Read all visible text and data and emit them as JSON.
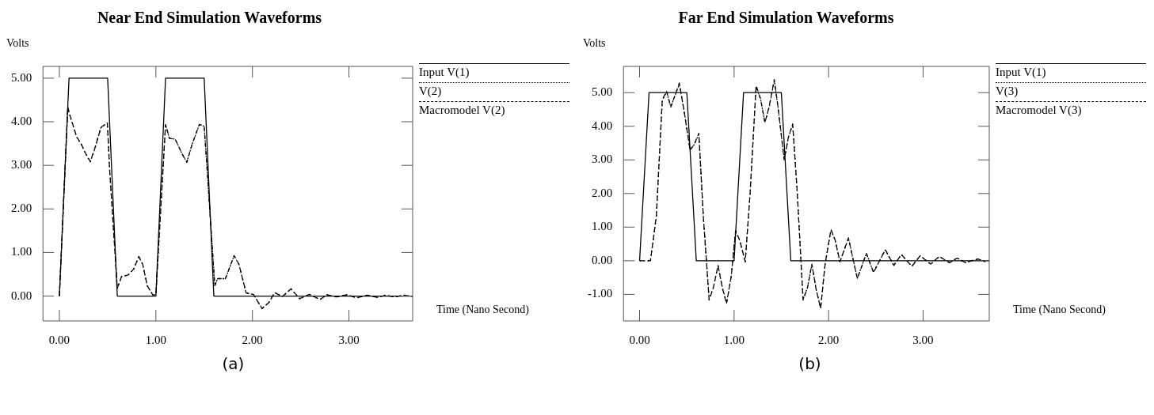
{
  "chart_data": [
    {
      "type": "line",
      "title": "Near End Simulation Waveforms",
      "ylabel": "Volts",
      "xlabel": "Time (Nano Second)",
      "annotations": [
        "(a)"
      ],
      "legend": "top right",
      "grid": false,
      "marker": "none",
      "xlim": [
        -0.17,
        3.66
      ],
      "xticks": [
        {
          "value": 0,
          "label": "0.00"
        },
        {
          "value": 1,
          "label": "1.00"
        },
        {
          "value": 2,
          "label": "2.00"
        },
        {
          "value": 3,
          "label": "3.00"
        }
      ],
      "ylim": [
        -0.57,
        5.27
      ],
      "yticks": [
        {
          "value": 0,
          "label": "0.00"
        },
        {
          "value": 1,
          "label": "1.00"
        },
        {
          "value": 2,
          "label": "2.00"
        },
        {
          "value": 3,
          "label": "3.00"
        },
        {
          "value": 4,
          "label": "4.00"
        },
        {
          "value": 5,
          "label": "5.00"
        }
      ],
      "series": [
        {
          "name": "Input V(1)",
          "color": "#000000",
          "line_style": "solid",
          "x": [
            0,
            0.1,
            0.5,
            0.6,
            1.0,
            1.1,
            1.5,
            1.6,
            3.66
          ],
          "values": [
            0,
            5,
            5,
            0,
            0,
            5,
            5,
            0,
            0
          ]
        },
        {
          "name": "V(2)",
          "color": "#000000",
          "line_style": "dotted",
          "x": [
            0,
            0.087,
            0.118,
            0.18,
            0.227,
            0.273,
            0.32,
            0.366,
            0.43,
            0.497,
            0.52,
            0.6,
            0.646,
            0.708,
            0.77,
            0.823,
            0.863,
            0.91,
            0.97,
            1.0,
            1.1,
            1.14,
            1.2,
            1.27,
            1.32,
            1.376,
            1.45,
            1.5,
            1.53,
            1.61,
            1.64,
            1.72,
            1.81,
            1.86,
            1.935,
            2.01,
            2.1,
            2.17,
            2.23,
            2.31,
            2.4,
            2.49,
            2.59,
            2.7,
            2.77,
            2.87,
            2.98,
            3.08,
            3.19,
            3.29,
            3.38,
            3.47,
            3.57,
            3.66
          ],
          "values": [
            0,
            4.3,
            4.07,
            3.64,
            3.48,
            3.26,
            3.08,
            3.37,
            3.86,
            3.97,
            2.93,
            0.18,
            0.45,
            0.47,
            0.62,
            0.9,
            0.73,
            0.24,
            0.02,
            0.04,
            3.93,
            3.62,
            3.6,
            3.27,
            3.07,
            3.49,
            3.93,
            3.9,
            2.93,
            0.24,
            0.4,
            0.4,
            0.92,
            0.73,
            0.07,
            0.04,
            -0.28,
            -0.15,
            0.08,
            -0.01,
            0.16,
            -0.06,
            0.04,
            -0.08,
            0.03,
            -0.02,
            0.03,
            -0.04,
            0.02,
            -0.03,
            0.02,
            -0.02,
            0.02,
            -0.01
          ]
        },
        {
          "name": "Macromodel V(2)",
          "color": "#000000",
          "line_style": "dashed",
          "x": [
            0,
            0.087,
            0.118,
            0.18,
            0.227,
            0.273,
            0.32,
            0.366,
            0.43,
            0.497,
            0.52,
            0.6,
            0.646,
            0.708,
            0.77,
            0.823,
            0.863,
            0.91,
            0.97,
            1.0,
            1.1,
            1.14,
            1.2,
            1.27,
            1.32,
            1.376,
            1.45,
            1.5,
            1.53,
            1.61,
            1.64,
            1.72,
            1.81,
            1.86,
            1.935,
            2.01,
            2.1,
            2.17,
            2.23,
            2.31,
            2.4,
            2.49,
            2.59,
            2.7,
            2.77,
            2.87,
            2.98,
            3.08,
            3.19,
            3.29,
            3.38,
            3.47,
            3.57,
            3.66
          ],
          "values": [
            0,
            4.34,
            4.09,
            3.65,
            3.49,
            3.27,
            3.09,
            3.38,
            3.87,
            3.98,
            2.93,
            0.18,
            0.46,
            0.48,
            0.62,
            0.91,
            0.73,
            0.24,
            0.02,
            0.04,
            3.94,
            3.62,
            3.6,
            3.27,
            3.07,
            3.49,
            3.94,
            3.9,
            2.93,
            0.24,
            0.4,
            0.4,
            0.93,
            0.73,
            0.07,
            0.04,
            -0.29,
            -0.15,
            0.08,
            -0.01,
            0.17,
            -0.06,
            0.04,
            -0.08,
            0.03,
            -0.02,
            0.03,
            -0.04,
            0.02,
            -0.03,
            0.02,
            -0.02,
            0.02,
            -0.01
          ]
        }
      ]
    },
    {
      "type": "line",
      "title": "Far End Simulation Waveforms",
      "ylabel": "Volts",
      "xlabel": "Time (Nano Second)",
      "annotations": [
        "(b)"
      ],
      "legend": "top right",
      "grid": false,
      "marker": "none",
      "xlim": [
        -0.17,
        3.7
      ],
      "xticks": [
        {
          "value": 0,
          "label": "0.00"
        },
        {
          "value": 1,
          "label": "1.00"
        },
        {
          "value": 2,
          "label": "2.00"
        },
        {
          "value": 3,
          "label": "3.00"
        }
      ],
      "ylim": [
        -1.79,
        5.78
      ],
      "yticks": [
        {
          "value": -1,
          "label": "-1.00"
        },
        {
          "value": 0,
          "label": "0.00"
        },
        {
          "value": 1,
          "label": "1.00"
        },
        {
          "value": 2,
          "label": "2.00"
        },
        {
          "value": 3,
          "label": "3.00"
        },
        {
          "value": 4,
          "label": "4.00"
        },
        {
          "value": 5,
          "label": "5.00"
        }
      ],
      "series": [
        {
          "name": "Input V(1)",
          "color": "#000000",
          "line_style": "solid",
          "x": [
            0,
            0.1,
            0.5,
            0.6,
            1.0,
            1.1,
            1.5,
            1.6,
            3.7
          ],
          "values": [
            0,
            5,
            5,
            0,
            0,
            5,
            5,
            0,
            0
          ]
        },
        {
          "name": "V(3)",
          "color": "#000000",
          "line_style": "dotted",
          "x": [
            0,
            0.115,
            0.177,
            0.24,
            0.286,
            0.33,
            0.38,
            0.42,
            0.47,
            0.534,
            0.58,
            0.627,
            0.674,
            0.736,
            0.78,
            0.83,
            0.876,
            0.92,
            0.97,
            1.016,
            1.06,
            1.118,
            1.17,
            1.233,
            1.28,
            1.326,
            1.37,
            1.425,
            1.466,
            1.53,
            1.575,
            1.62,
            1.668,
            1.73,
            1.776,
            1.823,
            1.87,
            1.916,
            1.963,
            2.025,
            2.07,
            2.12,
            2.21,
            2.304,
            2.4,
            2.475,
            2.6,
            2.69,
            2.77,
            2.88,
            2.97,
            3.08,
            3.17,
            3.28,
            3.36,
            3.45,
            3.5,
            3.58,
            3.66
          ],
          "values": [
            0,
            0,
            1.3,
            4.77,
            5.02,
            4.58,
            4.95,
            5.25,
            4.48,
            3.3,
            3.46,
            3.77,
            1.35,
            -1.15,
            -0.8,
            -0.15,
            -0.8,
            -1.25,
            -0.46,
            0.88,
            0.6,
            -0.03,
            2.04,
            5.18,
            4.8,
            4.12,
            4.55,
            5.35,
            4.55,
            3.02,
            3.67,
            4.05,
            2.04,
            -1.15,
            -0.8,
            -0.12,
            -0.87,
            -1.4,
            -0.1,
            0.92,
            0.6,
            -0.03,
            0.67,
            -0.52,
            0.22,
            -0.34,
            0.32,
            -0.14,
            0.18,
            -0.16,
            0.15,
            -0.1,
            0.12,
            -0.06,
            0.08,
            -0.06,
            -0.01,
            0.05,
            -0.03
          ]
        },
        {
          "name": "Macromodel V(3)",
          "color": "#000000",
          "line_style": "dashed",
          "x": [
            0,
            0.115,
            0.177,
            0.24,
            0.286,
            0.33,
            0.38,
            0.42,
            0.47,
            0.534,
            0.58,
            0.627,
            0.674,
            0.736,
            0.78,
            0.83,
            0.876,
            0.92,
            0.97,
            1.016,
            1.06,
            1.118,
            1.17,
            1.233,
            1.28,
            1.326,
            1.37,
            1.425,
            1.466,
            1.53,
            1.575,
            1.62,
            1.668,
            1.73,
            1.776,
            1.823,
            1.87,
            1.916,
            1.963,
            2.025,
            2.07,
            2.12,
            2.21,
            2.304,
            2.4,
            2.475,
            2.6,
            2.69,
            2.77,
            2.88,
            2.97,
            3.08,
            3.17,
            3.28,
            3.36,
            3.45,
            3.5,
            3.58,
            3.66
          ],
          "values": [
            0,
            0,
            1.33,
            4.79,
            5.04,
            4.57,
            4.96,
            5.29,
            4.47,
            3.29,
            3.47,
            3.79,
            1.33,
            -1.17,
            -0.81,
            -0.14,
            -0.81,
            -1.28,
            -0.46,
            0.9,
            0.61,
            -0.03,
            2.04,
            5.21,
            4.82,
            4.11,
            4.57,
            5.39,
            4.54,
            3.0,
            3.68,
            4.07,
            2.04,
            -1.17,
            -0.81,
            -0.1,
            -0.88,
            -1.42,
            -0.1,
            0.93,
            0.61,
            -0.03,
            0.68,
            -0.53,
            0.22,
            -0.35,
            0.33,
            -0.14,
            0.19,
            -0.17,
            0.15,
            -0.1,
            0.13,
            -0.06,
            0.08,
            -0.06,
            -0.01,
            0.05,
            -0.03
          ]
        }
      ]
    }
  ]
}
